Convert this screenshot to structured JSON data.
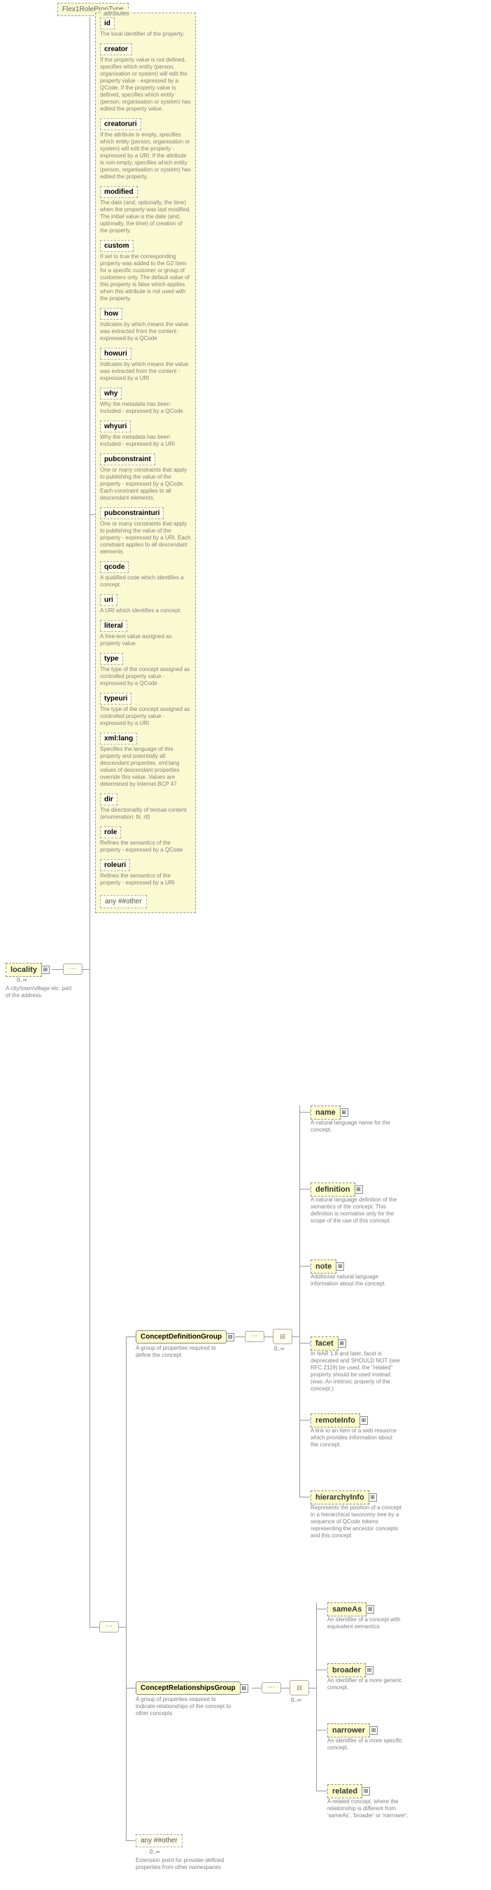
{
  "typeName": "Flex1RolePropType",
  "root": {
    "name": "locality",
    "occur": "0..∞",
    "desc": "A city/town/village etc. part of the address."
  },
  "attributes": {
    "label": "attributes",
    "items": [
      {
        "name": "id",
        "desc": "The local identifier of the property."
      },
      {
        "name": "creator",
        "desc": "If the property value is not defined, specifies which entity (person, organisation or system) will edit the property value - expressed by a QCode. If the property value is defined, specifies which entity (person, organisation or system) has edited the property value."
      },
      {
        "name": "creatoruri",
        "desc": "If the attribute is empty, specifies which entity (person, organisation or system) will edit the property - expressed by a URI. If the attribute is non-empty, specifies which entity (person, organisation or system) has edited the property."
      },
      {
        "name": "modified",
        "desc": "The date (and, optionally, the time) when the property was last modified. The initial value is the date (and, optionally, the time) of creation of the property."
      },
      {
        "name": "custom",
        "desc": "If set to true the corresponding property was added to the G2 Item for a specific customer or group of customers only. The default value of this property is false which applies when this attribute is not used with the property."
      },
      {
        "name": "how",
        "desc": "Indicates by which means the value was extracted from the content - expressed by a QCode"
      },
      {
        "name": "howuri",
        "desc": "Indicates by which means the value was extracted from the content - expressed by a URI"
      },
      {
        "name": "why",
        "desc": "Why the metadata has been included - expressed by a QCode"
      },
      {
        "name": "whyuri",
        "desc": "Why the metadata has been included - expressed by a URI"
      },
      {
        "name": "pubconstraint",
        "desc": "One or many constraints that apply to publishing the value of the property - expressed by a QCode. Each constraint applies to all descendant elements."
      },
      {
        "name": "pubconstrainturi",
        "desc": "One or many constraints that apply to publishing the value of the property - expressed by a URI. Each constraint applies to all descendant elements."
      },
      {
        "name": "qcode",
        "desc": "A qualified code which identifies a concept."
      },
      {
        "name": "uri",
        "desc": "A URI which identifies a concept."
      },
      {
        "name": "literal",
        "desc": "A free-text value assigned as property value."
      },
      {
        "name": "type",
        "desc": "The type of the concept assigned as controlled property value - expressed by a QCode"
      },
      {
        "name": "typeuri",
        "desc": "The type of the concept assigned as controlled property value - expressed by a URI"
      },
      {
        "name": "xml:lang",
        "desc": "Specifies the language of this property and potentially all descendant properties. xml:lang values of descendant properties override this value. Values are determined by Internet BCP 47."
      },
      {
        "name": "dir",
        "desc": "The directionality of textual content (enumeration: ltr, rtl)"
      },
      {
        "name": "role",
        "desc": "Refines the semantics of the property - expressed by a QCode"
      },
      {
        "name": "roleuri",
        "desc": "Refines the semantics of the property - expressed by a URI"
      }
    ],
    "anyOther": "any ##other"
  },
  "groups": {
    "conceptDef": {
      "name": "ConceptDefinitionGroup",
      "desc": "A group of properties required to define the concept",
      "children": [
        {
          "name": "name",
          "desc": "A natural language name for the concept."
        },
        {
          "name": "definition",
          "desc": "A natural language definition of the semantics of the concept. This definition is normative only for the scope of the use of this concept."
        },
        {
          "name": "note",
          "desc": "Additional natural language information about the concept."
        },
        {
          "name": "facet",
          "desc": "In NAR 1.8 and later, facet is deprecated and SHOULD NOT (see RFC 2119) be used; the \"related\" property should be used instead. (was: An intrinsic property of the concept.)"
        },
        {
          "name": "remoteInfo",
          "desc": "A link to an item or a web resource which provides information about the concept"
        },
        {
          "name": "hierarchyInfo",
          "desc": "Represents the position of a concept in a hierarchical taxonomy tree by a sequence of QCode tokens representing the ancestor concepts and this concept"
        }
      ]
    },
    "conceptRel": {
      "name": "ConceptRelationshipsGroup",
      "desc": "A group of properties required to indicate relationships of the concept to other concepts",
      "children": [
        {
          "name": "sameAs",
          "desc": "An identifier of a concept with equivalent semantics"
        },
        {
          "name": "broader",
          "desc": "An identifier of a more generic concept."
        },
        {
          "name": "narrower",
          "desc": "An identifier of a more specific concept."
        },
        {
          "name": "related",
          "desc": "A related concept, where the relationship is different from 'sameAs', 'broader' or 'narrower'."
        }
      ]
    },
    "anyOther": {
      "name": "any ##other",
      "occur": "0..∞",
      "desc": "Extension point for provider-defined properties from other namespaces"
    }
  },
  "childOccur": "0..∞",
  "colors": {
    "bg": "#ffffff",
    "box": "#ffffcc",
    "lightbox": "#fafad2",
    "border": "#888888",
    "dashBorder": "#999999",
    "text": "#333333",
    "descText": "#808080"
  }
}
